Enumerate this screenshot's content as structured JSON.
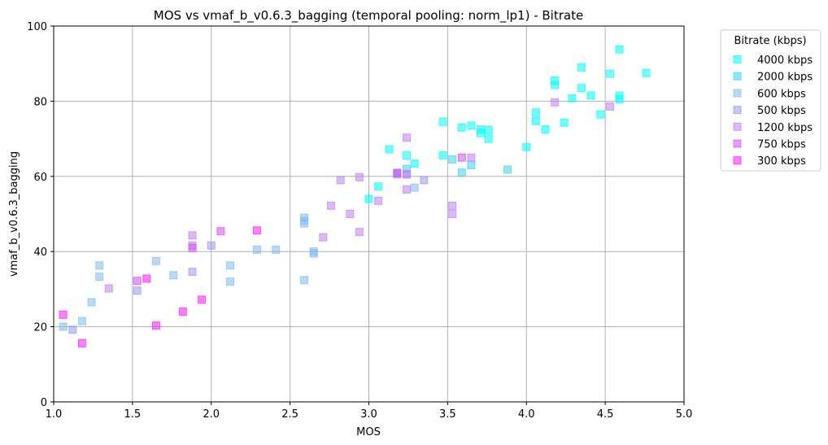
{
  "chart_data": {
    "type": "scatter",
    "title": "MOS vs vmaf_b_v0.6.3_bagging (temporal pooling: norm_lp1) - Bitrate",
    "xlabel": "MOS",
    "ylabel": "vmaf_b_v0.6.3_bagging",
    "xlim": [
      1.0,
      5.0
    ],
    "ylim": [
      0,
      100
    ],
    "xticks": [
      "1.0",
      "1.5",
      "2.0",
      "2.5",
      "3.0",
      "3.5",
      "4.0",
      "4.5",
      "5.0"
    ],
    "yticks": [
      "0",
      "20",
      "40",
      "60",
      "80",
      "100"
    ],
    "grid": true,
    "legend_title": "Bitrate (kbps)",
    "legend_position": "outside-top-right",
    "marker": "square",
    "series": [
      {
        "name": "4000 kbps",
        "color": "#00ffff",
        "points": [
          [
            3.13,
            67.2
          ],
          [
            3.24,
            65.6
          ],
          [
            3.29,
            63.4
          ],
          [
            3.47,
            74.5
          ],
          [
            3.47,
            65.6
          ],
          [
            3.59,
            73
          ],
          [
            3.65,
            73.5
          ],
          [
            3.71,
            72.5
          ],
          [
            3.76,
            72.3
          ],
          [
            3.76,
            70
          ],
          [
            3.71,
            71.5
          ],
          [
            4.06,
            77
          ],
          [
            4.06,
            74.7
          ],
          [
            4.18,
            85.5
          ],
          [
            4.18,
            84.3
          ],
          [
            4.24,
            74.3
          ],
          [
            4.29,
            80.8
          ],
          [
            4.35,
            89
          ],
          [
            4.35,
            83.5
          ],
          [
            4.41,
            81.5
          ],
          [
            4.47,
            76.5
          ],
          [
            4.53,
            87.3
          ],
          [
            4.59,
            93.8
          ],
          [
            4.59,
            81.5
          ],
          [
            4.59,
            80.5
          ],
          [
            4.76,
            87.5
          ],
          [
            4.12,
            72.5
          ],
          [
            4.0,
            67.8
          ],
          [
            3.06,
            57.3
          ],
          [
            3.0,
            54
          ]
        ]
      },
      {
        "name": "2000 kbps",
        "color": "#3fd2f5",
        "points": [
          [
            3.53,
            64.5
          ],
          [
            3.65,
            63
          ],
          [
            3.59,
            61
          ],
          [
            3.88,
            61.8
          ],
          [
            3.24,
            62
          ]
        ]
      },
      {
        "name": "600 kbps",
        "color": "#7fbcf0",
        "points": [
          [
            1.06,
            20
          ],
          [
            1.18,
            21.5
          ],
          [
            1.24,
            26.5
          ],
          [
            1.29,
            36.3
          ],
          [
            1.29,
            33.3
          ],
          [
            1.65,
            37.5
          ],
          [
            1.76,
            33.7
          ],
          [
            2.12,
            32
          ],
          [
            2.12,
            36.3
          ],
          [
            2.29,
            40.5
          ],
          [
            2.41,
            40.5
          ],
          [
            2.59,
            49
          ],
          [
            2.59,
            47.5
          ],
          [
            2.59,
            48.2
          ],
          [
            2.59,
            32.4
          ],
          [
            2.65,
            40
          ],
          [
            2.65,
            39.5
          ],
          [
            3.18,
            60.5
          ],
          [
            3.29,
            57
          ]
        ]
      },
      {
        "name": "500 kbps",
        "color": "#9999f0",
        "points": [
          [
            1.12,
            19.2
          ],
          [
            1.53,
            29.6
          ],
          [
            1.88,
            34.6
          ],
          [
            2.0,
            41.6
          ],
          [
            3.18,
            61
          ],
          [
            3.35,
            59
          ],
          [
            3.24,
            60.5
          ]
        ]
      },
      {
        "name": "1200 kbps",
        "color": "#bf7ff5",
        "points": [
          [
            1.35,
            30.2
          ],
          [
            1.88,
            44.3
          ],
          [
            1.88,
            41.6
          ],
          [
            2.71,
            43.8
          ],
          [
            2.76,
            52.2
          ],
          [
            2.82,
            59
          ],
          [
            2.88,
            50
          ],
          [
            2.94,
            59.8
          ],
          [
            2.94,
            45.2
          ],
          [
            3.06,
            53.5
          ],
          [
            3.24,
            70.3
          ],
          [
            3.24,
            60.6
          ],
          [
            3.24,
            56.5
          ],
          [
            3.53,
            52.2
          ],
          [
            3.53,
            50
          ],
          [
            3.65,
            65
          ],
          [
            4.18,
            79.7
          ],
          [
            4.53,
            78.6
          ]
        ]
      },
      {
        "name": "750 kbps",
        "color": "#d44ff0",
        "points": [
          [
            1.53,
            32.2
          ],
          [
            1.88,
            41
          ],
          [
            2.06,
            45.4
          ],
          [
            3.18,
            60.8
          ],
          [
            3.59,
            65
          ]
        ]
      },
      {
        "name": "300 kbps",
        "color": "#ff1aff",
        "points": [
          [
            1.06,
            23.2
          ],
          [
            1.18,
            15.6
          ],
          [
            1.59,
            32.8
          ],
          [
            1.65,
            20.3
          ],
          [
            1.82,
            24
          ],
          [
            1.94,
            27.2
          ],
          [
            2.29,
            45.6
          ]
        ]
      }
    ]
  }
}
